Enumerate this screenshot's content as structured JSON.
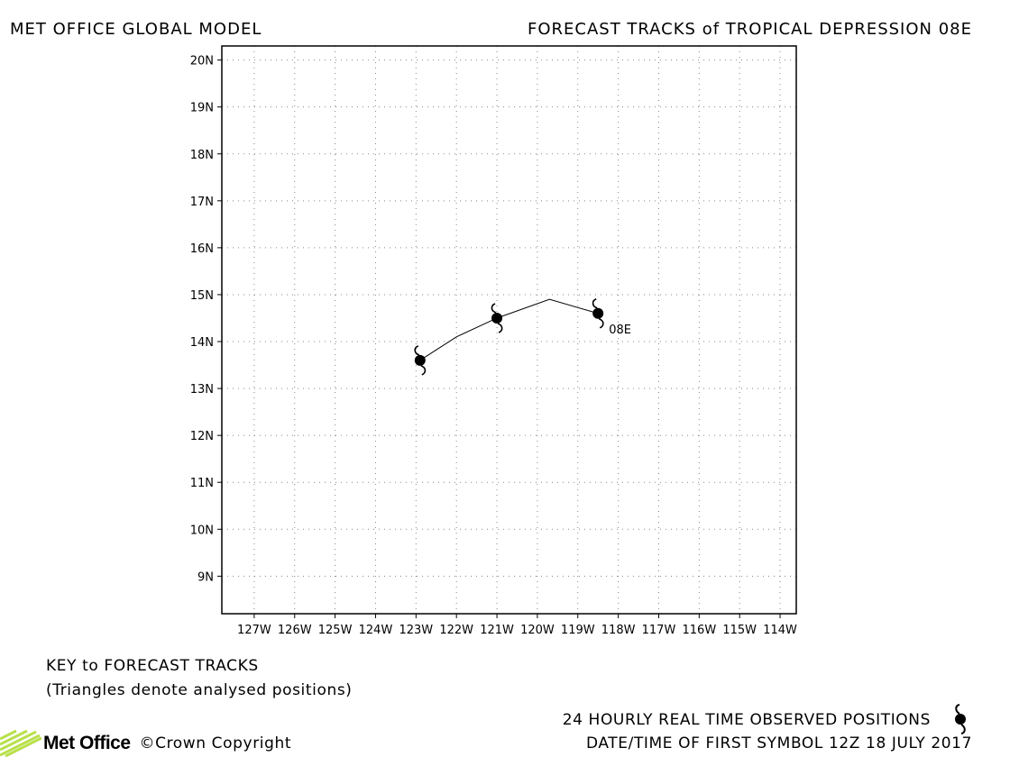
{
  "header": {
    "left_title": "MET OFFICE GLOBAL MODEL",
    "right_title": "FORECAST TRACKS of TROPICAL DEPRESSION 08E"
  },
  "key": {
    "title": "KEY to FORECAST TRACKS",
    "note": "(Triangles denote analysed positions)"
  },
  "legend": {
    "observed_label": "24 HOURLY REAL TIME OBSERVED POSITIONS",
    "date_label": "DATE/TIME OF FIRST SYMBOL 12Z 18 JULY 2017",
    "symbol_icon": "tropical-cyclone-icon"
  },
  "footer": {
    "logo_text": "Met Office",
    "copyright": "©Crown Copyright"
  },
  "colors": {
    "logo_green": "#b8e04a",
    "line": "#000000",
    "grid": "#888888"
  },
  "chart_data": {
    "type": "map-track",
    "x_ticks": [
      "127W",
      "126W",
      "125W",
      "124W",
      "123W",
      "122W",
      "121W",
      "120W",
      "119W",
      "118W",
      "117W",
      "116W",
      "115W",
      "114W"
    ],
    "y_ticks": [
      "9N",
      "10N",
      "11N",
      "12N",
      "13N",
      "14N",
      "15N",
      "16N",
      "17N",
      "18N",
      "19N",
      "20N"
    ],
    "xlim": [
      -127.8,
      -113.6
    ],
    "ylim": [
      8.2,
      20.3
    ],
    "grid": true,
    "storm_label": "08E",
    "track": [
      {
        "lon": -118.5,
        "lat": 14.6
      },
      {
        "lon": -119.7,
        "lat": 14.9
      },
      {
        "lon": -121.0,
        "lat": 14.5
      },
      {
        "lon": -122.0,
        "lat": 14.1
      },
      {
        "lon": -122.9,
        "lat": 13.6
      }
    ],
    "observed_positions": [
      {
        "lon": -118.5,
        "lat": 14.6
      },
      {
        "lon": -121.0,
        "lat": 14.5
      },
      {
        "lon": -122.9,
        "lat": 13.6
      }
    ]
  }
}
